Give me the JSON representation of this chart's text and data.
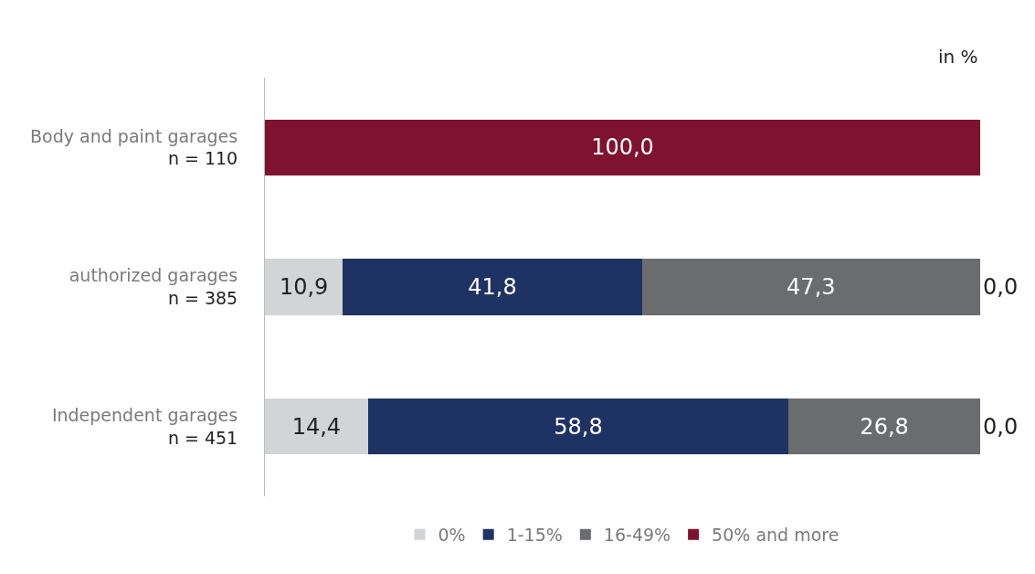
{
  "chart_data": {
    "type": "bar",
    "orientation": "horizontal",
    "stacked": true,
    "categories": [
      "Body and paint garages\nn = 110",
      "authorized garages\nn = 385",
      "Independent garages\nn = 451"
    ],
    "series": [
      {
        "name": "0%",
        "color": "#d3d4d6",
        "values": [
          0,
          10.9,
          14.4
        ],
        "value_labels": [
          null,
          "10,9",
          "14,4"
        ]
      },
      {
        "name": "1-15%",
        "color": "#1f3264",
        "values": [
          0,
          41.8,
          58.8
        ],
        "value_labels": [
          null,
          "41,8",
          "58,8"
        ]
      },
      {
        "name": "16-49%",
        "color": "#6b6c70",
        "values": [
          0,
          47.3,
          26.8
        ],
        "value_labels": [
          null,
          "47,3",
          "26,8"
        ]
      },
      {
        "name": "50% and more",
        "color": "#7f1231",
        "values": [
          100,
          0,
          0
        ],
        "value_labels": [
          "100,0",
          "0,0",
          "0,0"
        ]
      }
    ],
    "xlim": [
      0,
      100
    ],
    "tick_labels": "y",
    "legend": "bottom",
    "annotations": [
      "in %"
    ]
  }
}
